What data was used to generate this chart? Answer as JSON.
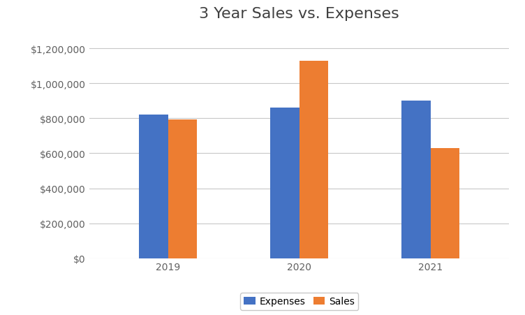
{
  "title": "3 Year Sales vs. Expenses",
  "years": [
    "2019",
    "2020",
    "2021"
  ],
  "expenses": [
    820000,
    860000,
    900000
  ],
  "sales": [
    795000,
    1130000,
    630000
  ],
  "expenses_color": "#4472C4",
  "sales_color": "#ED7D31",
  "ylim": [
    0,
    1300000
  ],
  "yticks": [
    0,
    200000,
    400000,
    600000,
    800000,
    1000000,
    1200000
  ],
  "legend_labels": [
    "Expenses",
    "Sales"
  ],
  "background_color": "#ffffff",
  "grid_color": "#c8c8c8",
  "title_fontsize": 16,
  "tick_fontsize": 10,
  "legend_fontsize": 10,
  "bar_width": 0.22
}
